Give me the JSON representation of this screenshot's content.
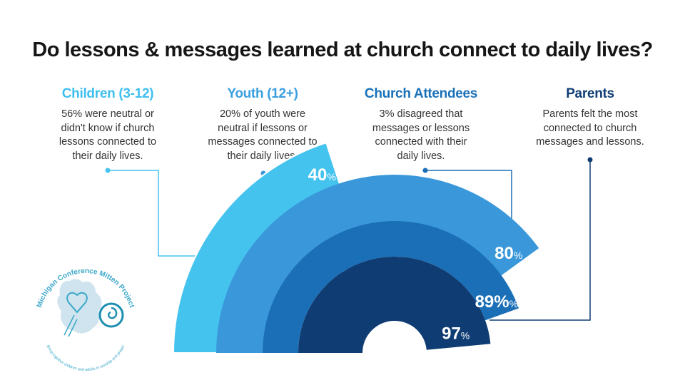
{
  "title": "Do lessons & messages learned at church connect to daily lives?",
  "groups": [
    {
      "name": "Children (3-12)",
      "desc_lines": [
        "56% were neutral or",
        "didn't know if church",
        "lessons connected to",
        "their daily lives."
      ],
      "color": "#3fbfef"
    },
    {
      "name": "Youth (12+)",
      "desc_lines": [
        "20% of youth were",
        "neutral if lessons or",
        "messages connected to",
        "their daily lives."
      ],
      "color": "#3a9fdf"
    },
    {
      "name": "Church Attendees",
      "desc_lines": [
        "3% disagreed that",
        "messages or lessons",
        "connected with their",
        "daily lives."
      ],
      "color": "#1a71b8"
    },
    {
      "name": "Parents",
      "desc_lines": [
        "Parents felt the most",
        "connected to church",
        "messages and lessons."
      ],
      "color": "#103d74"
    }
  ],
  "chart_data": {
    "type": "radial-bar",
    "series": [
      {
        "name": "Children (3-12)",
        "value": 40,
        "label_num": "40",
        "label_unit": "%",
        "color": "#45c3ef"
      },
      {
        "name": "Youth (12+)",
        "value": 80,
        "label_num": "80",
        "label_unit": "%",
        "color": "#3a98da"
      },
      {
        "name": "Church Attendees",
        "value": 89,
        "label_num": "89%",
        "label_unit": "%",
        "color": "#1b6fb7"
      },
      {
        "name": "Parents",
        "value": 97,
        "label_num": "97",
        "label_unit": "%",
        "color": "#0f3c73"
      }
    ],
    "max": 100
  },
  "logo": {
    "text_top": "Michigan Conference Mitten Project",
    "text_bottom": "Bring together children and adults in worship and prayer",
    "colors": {
      "primary": "#3aa7c9",
      "light": "#cfe4ee",
      "swirl": "#1e8fb0"
    }
  }
}
